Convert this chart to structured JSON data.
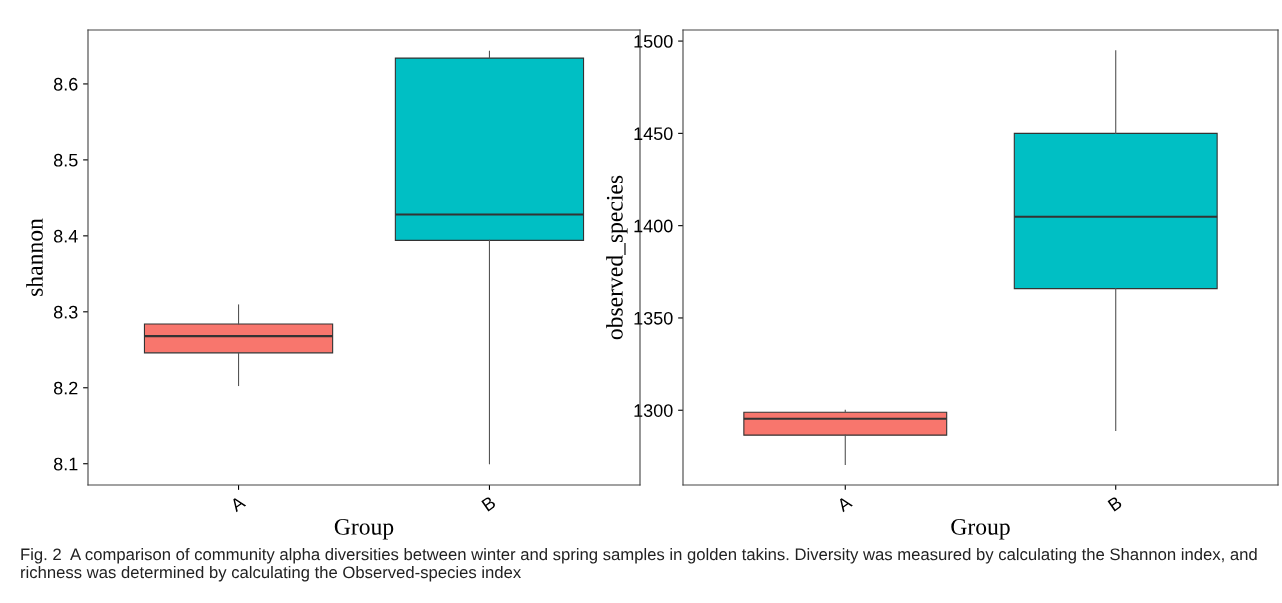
{
  "chart_data": [
    {
      "type": "box",
      "categories": [
        "A",
        "B"
      ],
      "xlabel": "Group",
      "ylabel": "shannon",
      "ylim": [
        8.072,
        8.671
      ],
      "yticks": [
        8.1,
        8.2,
        8.3,
        8.4,
        8.5,
        8.6
      ],
      "grid": false,
      "legend": false,
      "colors": [
        "#f8766d",
        "#00bfc4"
      ],
      "boxes": [
        {
          "low": 8.203,
          "q1": 8.246,
          "median": 8.268,
          "q3": 8.284,
          "high": 8.309
        },
        {
          "low": 8.1,
          "q1": 8.394,
          "median": 8.428,
          "q3": 8.634,
          "high": 8.643
        }
      ]
    },
    {
      "type": "box",
      "categories": [
        "A",
        "B"
      ],
      "xlabel": "Group",
      "ylabel": "observed_species",
      "ylim": [
        1259.5,
        1506
      ],
      "yticks": [
        1300,
        1350,
        1400,
        1450,
        1500
      ],
      "grid": false,
      "legend": false,
      "colors": [
        "#f8766d",
        "#00bfc4"
      ],
      "boxes": [
        {
          "low": 1270.7,
          "q1": 1286.5,
          "median": 1295.4,
          "q3": 1298.9,
          "high": 1300
        },
        {
          "low": 1289,
          "q1": 1365.9,
          "median": 1404.8,
          "q3": 1450,
          "high": 1494.7
        }
      ],
      "annotations": [
        "Fig. 2  A comparison of community alpha diversities between winter and spring samples in golden takins. Diversity was measured by calculating the Shannon index, and richness was determined by calculating the Observed-species index"
      ]
    }
  ]
}
